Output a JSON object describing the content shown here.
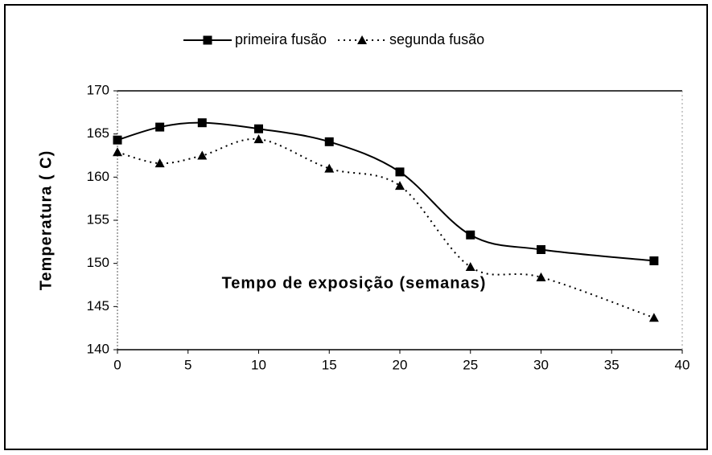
{
  "chart_data": {
    "type": "line",
    "x_label": "Tempo de exposição (semanas)",
    "y_label": "Temperatura ( C)",
    "x": [
      0,
      3,
      6,
      10,
      15,
      20,
      25,
      30,
      38
    ],
    "series": [
      {
        "name": "primeira fusão",
        "color": "#000000",
        "dash": "solid",
        "marker": "square",
        "values": [
          164.3,
          165.8,
          166.3,
          165.6,
          164.1,
          160.6,
          153.3,
          151.6,
          150.3
        ]
      },
      {
        "name": "segunda fusão",
        "color": "#000000",
        "dash": "dotted",
        "marker": "triangle",
        "values": [
          162.9,
          161.6,
          162.5,
          164.4,
          161.0,
          159.0,
          149.6,
          148.4,
          143.7
        ]
      }
    ],
    "xlim": [
      0,
      40
    ],
    "xticks": [
      0,
      5,
      10,
      15,
      20,
      25,
      30,
      35,
      40
    ],
    "ylim": [
      140,
      170
    ],
    "yticks": [
      140,
      145,
      150,
      155,
      160,
      165,
      170
    ],
    "grid": false,
    "legend": "top",
    "smooth": true
  }
}
